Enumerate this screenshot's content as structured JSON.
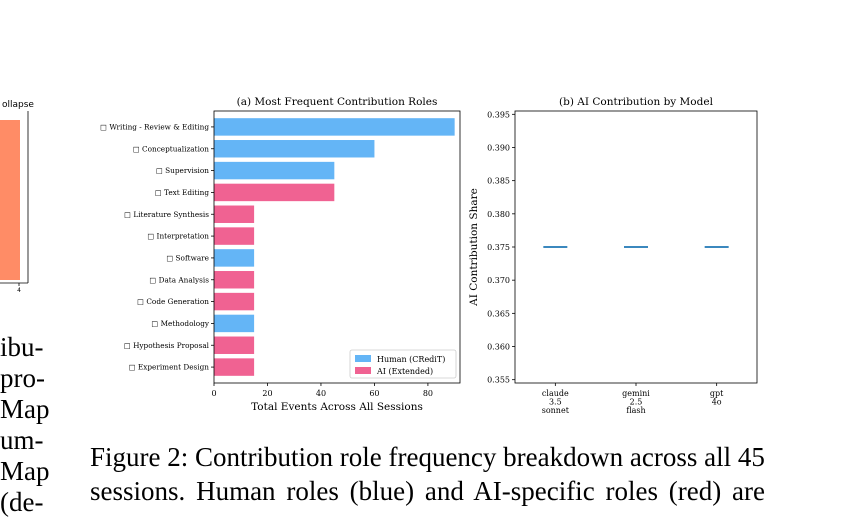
{
  "left_panel": {
    "title_fragment": "ollapse",
    "tick_label": "4",
    "bar_color": "#ff8c66",
    "text_fragments": [
      "ibu-",
      "pro-",
      "Map",
      "um-",
      "Map",
      "(de-"
    ]
  },
  "chart_data": [
    {
      "type": "bar",
      "orientation": "horizontal",
      "title": "(a) Most Frequent Contribution Roles",
      "xlabel": "Total Events Across All Sessions",
      "ylabel": "",
      "xlim": [
        0,
        92
      ],
      "xticks": [
        0,
        20,
        40,
        60,
        80
      ],
      "categories": [
        "□ Writing - Review & Editing",
        "□ Conceptualization",
        "□ Supervision",
        "□ Text Editing",
        "□ Literature Synthesis",
        "□ Interpretation",
        "□ Software",
        "□ Data Analysis",
        "□ Code Generation",
        "□ Methodology",
        "□ Hypothesis Proposal",
        "□ Experiment Design"
      ],
      "values": [
        90,
        60,
        45,
        45,
        15,
        15,
        15,
        15,
        15,
        15,
        15,
        15
      ],
      "groups": [
        "human",
        "human",
        "human",
        "ai",
        "ai",
        "ai",
        "human",
        "ai",
        "ai",
        "human",
        "ai",
        "ai"
      ],
      "legend": {
        "position": "lower-right",
        "entries": [
          {
            "key": "human",
            "label": "Human (CRediT)",
            "color": "#64b5f6"
          },
          {
            "key": "ai",
            "label": "AI (Extended)",
            "color": "#f06292"
          }
        ]
      },
      "grid": false
    },
    {
      "type": "box",
      "title": "(b) AI Contribution by Model",
      "xlabel": "",
      "ylabel": "AI Contribution Share",
      "ylim": [
        0.3545,
        0.3955
      ],
      "yticks": [
        0.355,
        0.36,
        0.365,
        0.37,
        0.375,
        0.38,
        0.385,
        0.39,
        0.395
      ],
      "ytick_labels": [
        "0.355",
        "0.360",
        "0.365",
        "0.370",
        "0.375",
        "0.380",
        "0.385",
        "0.390",
        "0.395"
      ],
      "categories": [
        [
          "claude",
          "3.5",
          "sonnet"
        ],
        [
          "gemini",
          "2.5",
          "flash"
        ],
        [
          "gpt",
          "4o"
        ]
      ],
      "values": [
        0.375,
        0.375,
        0.375
      ],
      "color": "#1f77b4",
      "grid": false
    }
  ],
  "caption": {
    "line1": "Figure 2: Contribution role frequency breakdown across all 45",
    "line2": "sessions.  Human roles (blue) and AI-specific roles (red) are"
  }
}
